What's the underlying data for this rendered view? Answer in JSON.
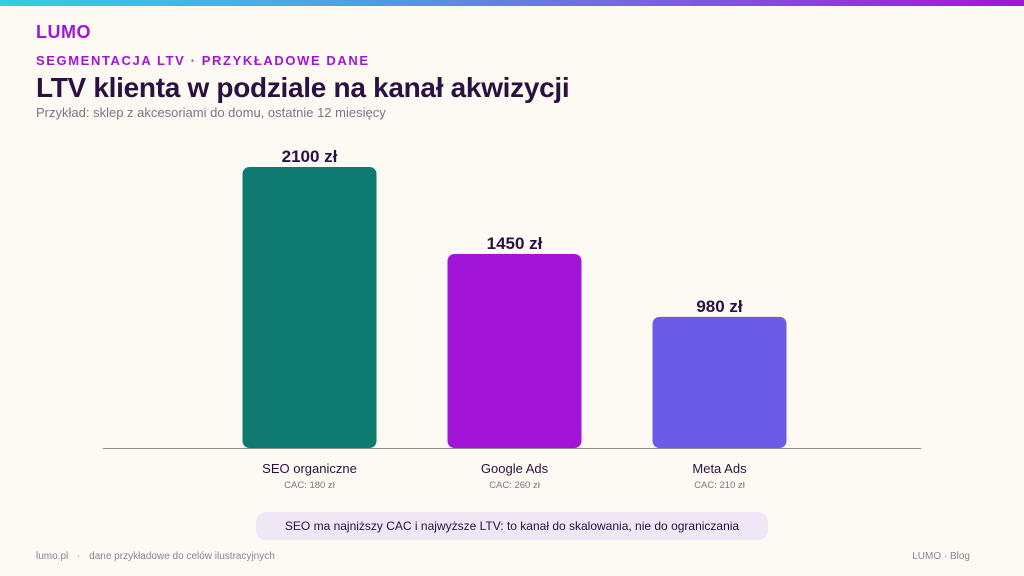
{
  "brand": "LUMO",
  "eyebrow": "SEGMENTACJA LTV · PRZYKŁADOWE DANE",
  "title": "LTV klienta w podziale na kanał akwizycji",
  "subtitle": "Przykład: sklep z akcesoriami do domu, ostatnie 12 miesięcy",
  "chart_data": {
    "type": "bar",
    "categories": [
      "SEO organiczne",
      "Google Ads",
      "Meta Ads"
    ],
    "values": [
      2100,
      1450,
      980
    ],
    "value_labels": [
      "2100 zł",
      "1450 zł",
      "980 zł"
    ],
    "sub_labels": [
      "CAC: 180 zł",
      "CAC: 260 zł",
      "CAC: 210 zł"
    ],
    "colors": [
      "#0f7a6f",
      "#a215d8",
      "#6a5ce8"
    ],
    "ylim": [
      0,
      2100
    ],
    "grid": false,
    "title": "",
    "xlabel": "",
    "ylabel": ""
  },
  "callout": "SEO ma najniższy CAC i najwyższe LTV: to kanał do skalowania, nie do ograniczania",
  "footer": {
    "site": "lumo.pl",
    "separator": "·",
    "note": "dane przykładowe do celów ilustracyjnych",
    "right": "LUMO · Blog"
  }
}
